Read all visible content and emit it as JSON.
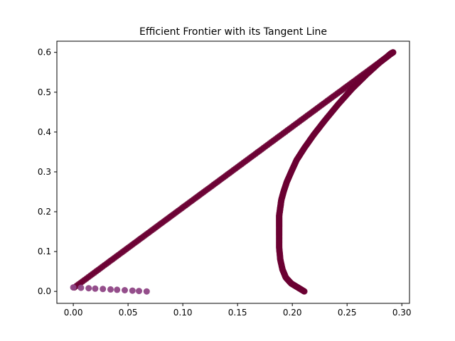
{
  "chart_data": {
    "type": "scatter",
    "title": "Efficient Frontier with its Tangent Line",
    "xlabel": "",
    "ylabel": "",
    "xlim": [
      -0.015,
      0.307
    ],
    "ylim": [
      -0.03,
      0.628
    ],
    "xticks": [
      0.0,
      0.05,
      0.1,
      0.15,
      0.2,
      0.25,
      0.3
    ],
    "xtick_labels": [
      "0.00",
      "0.05",
      "0.10",
      "0.15",
      "0.20",
      "0.25",
      "0.30"
    ],
    "yticks": [
      0.0,
      0.1,
      0.2,
      0.3,
      0.4,
      0.5,
      0.6
    ],
    "ytick_labels": [
      "0.0",
      "0.1",
      "0.2",
      "0.3",
      "0.4",
      "0.5",
      "0.6"
    ],
    "grid": false,
    "colors": {
      "frontier": "#6b0032",
      "tangent": "#6b0032",
      "small_points": "#8e4585"
    },
    "series": [
      {
        "kind": "frontier",
        "x": [
          0.211,
          0.205,
          0.199,
          0.194,
          0.191,
          0.189,
          0.188,
          0.188,
          0.188,
          0.188,
          0.189,
          0.19,
          0.192,
          0.195,
          0.199,
          0.204,
          0.211,
          0.22,
          0.23,
          0.242,
          0.255,
          0.268,
          0.28,
          0.287,
          0.29,
          0.292
        ],
        "y": [
          0.0,
          0.01,
          0.02,
          0.035,
          0.055,
          0.08,
          0.11,
          0.14,
          0.165,
          0.19,
          0.21,
          0.23,
          0.25,
          0.275,
          0.3,
          0.33,
          0.36,
          0.395,
          0.43,
          0.47,
          0.51,
          0.545,
          0.575,
          0.59,
          0.597,
          0.6
        ]
      },
      {
        "kind": "tangent",
        "x": [
          0.001,
          0.292
        ],
        "y": [
          0.01,
          0.6
        ]
      },
      {
        "kind": "small_points",
        "x": [
          0.0,
          0.007,
          0.014,
          0.02,
          0.027,
          0.034,
          0.04,
          0.047,
          0.054,
          0.06,
          0.067
        ],
        "y": [
          0.01,
          0.009,
          0.008,
          0.007,
          0.006,
          0.005,
          0.004,
          0.003,
          0.002,
          0.001,
          0.0
        ]
      }
    ]
  }
}
